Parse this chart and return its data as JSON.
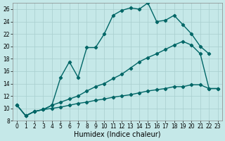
{
  "title": "",
  "xlabel": "Humidex (Indice chaleur)",
  "background_color": "#c5e8e8",
  "line_color": "#006666",
  "grid_color": "#a8cece",
  "xlim": [
    -0.5,
    23.5
  ],
  "ylim": [
    8,
    27
  ],
  "xticks": [
    0,
    1,
    2,
    3,
    4,
    5,
    6,
    7,
    8,
    9,
    10,
    11,
    12,
    13,
    14,
    15,
    16,
    17,
    18,
    19,
    20,
    21,
    22,
    23
  ],
  "yticks": [
    8,
    10,
    12,
    14,
    16,
    18,
    20,
    22,
    24,
    26
  ],
  "line1_x": [
    0,
    1,
    2,
    3,
    4,
    5,
    6,
    7,
    8,
    9,
    10,
    11,
    12,
    13,
    14,
    15,
    16,
    17,
    18,
    19,
    20,
    21,
    22
  ],
  "line1_y": [
    10.5,
    8.8,
    9.5,
    9.8,
    10.5,
    15.0,
    17.5,
    15.0,
    19.8,
    19.8,
    22.0,
    25.0,
    25.8,
    26.2,
    26.0,
    27.0,
    24.0,
    24.2,
    25.0,
    23.5,
    22.0,
    20.0,
    18.8
  ],
  "line2_x": [
    0,
    1,
    2,
    3,
    4,
    5,
    6,
    7,
    8,
    9,
    10,
    11,
    12,
    13,
    14,
    15,
    16,
    17,
    18,
    19,
    20,
    21,
    22,
    23
  ],
  "line2_y": [
    10.5,
    8.8,
    9.5,
    9.8,
    10.5,
    11.0,
    11.5,
    12.0,
    12.8,
    13.5,
    14.0,
    14.8,
    15.5,
    16.5,
    17.5,
    18.2,
    18.8,
    19.5,
    20.2,
    20.8,
    20.2,
    18.8,
    13.2,
    13.2
  ],
  "line3_x": [
    0,
    1,
    2,
    3,
    4,
    5,
    6,
    7,
    8,
    9,
    10,
    11,
    12,
    13,
    14,
    15,
    16,
    17,
    18,
    19,
    20,
    21,
    22,
    23
  ],
  "line3_y": [
    10.5,
    8.8,
    9.5,
    9.8,
    10.0,
    10.2,
    10.5,
    10.8,
    11.0,
    11.3,
    11.5,
    11.8,
    12.0,
    12.2,
    12.5,
    12.8,
    13.0,
    13.2,
    13.5,
    13.5,
    13.8,
    13.8,
    13.2,
    13.2
  ],
  "marker": "D",
  "marker_size": 2.2,
  "line_width": 1.0,
  "xlabel_fontsize": 7,
  "tick_fontsize": 5.5
}
